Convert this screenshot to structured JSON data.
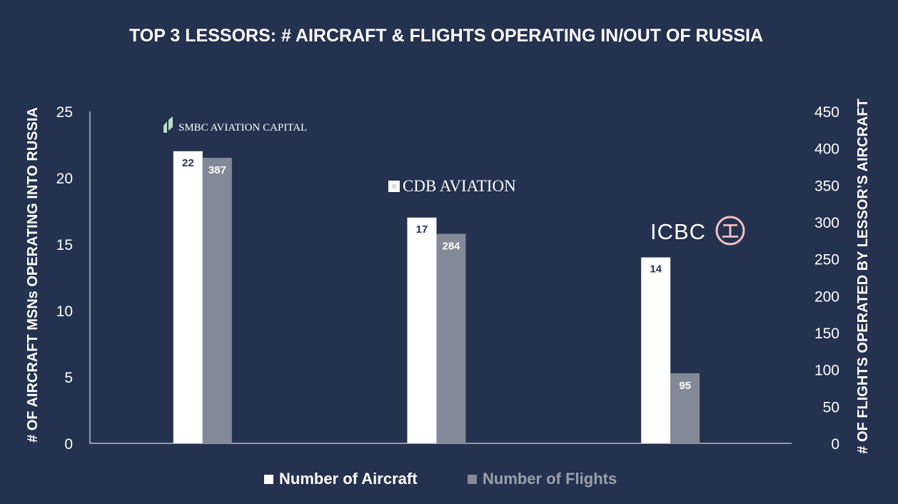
{
  "colors": {
    "background": "#24314f",
    "aircraft": "#ffffff",
    "flights": "#838a97",
    "aircraft_label": "#24314f",
    "flights_label": "#ffffff",
    "legend_flights_text": "#9aa0aa",
    "icbc_red": "#f4c2c4",
    "smbc_green": "#b9e0c4"
  },
  "chart_data": {
    "type": "bar",
    "title": "TOP 3 LESSORS: # AIRCRAFT & FLIGHTS OPERATING IN/OUT OF RUSSIA",
    "categories": [
      "SMBC AVIATION CAPITAL",
      "CDB AVIATION",
      "ICBC"
    ],
    "series": [
      {
        "name": "Number of Aircraft",
        "axis": "left",
        "values": [
          22,
          17,
          14
        ]
      },
      {
        "name": "Number of Flights",
        "axis": "right",
        "values": [
          387,
          284,
          95
        ]
      }
    ],
    "ylabel": "# OF AIRCRAFT MSNs OPERATING INTO RUSSIA",
    "y2label": "# OF FLIGHTS OPERATED BY LESSOR’S AIRCRAFT",
    "ylim": [
      0,
      25
    ],
    "y2lim": [
      0,
      450
    ],
    "yticks": [
      "0",
      "5",
      "10",
      "15",
      "20",
      "25"
    ],
    "y2ticks": [
      "0",
      "50",
      "100",
      "150",
      "200",
      "250",
      "300",
      "350",
      "400",
      "450"
    ],
    "legend_position": "bottom",
    "grid": false
  },
  "logos": {
    "smbc": "SMBC AVIATION CAPITAL",
    "cdb": "CDB AVIATION",
    "icbc": "ICBC",
    "icbc_symbol": "工"
  }
}
